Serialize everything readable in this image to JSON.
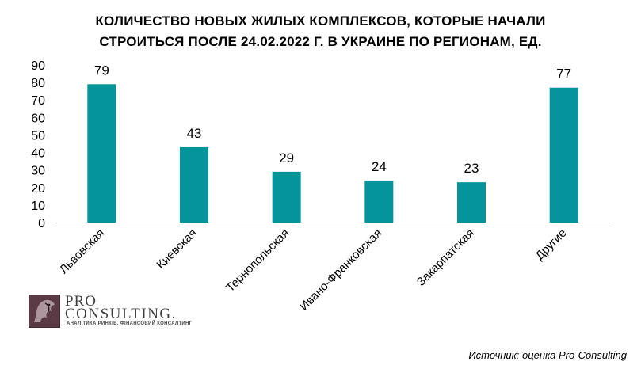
{
  "chart_data": {
    "type": "bar",
    "title": "КОЛИЧЕСТВО НОВЫХ ЖИЛЫХ КОМПЛЕКСОВ, КОТОРЫЕ НАЧАЛИ СТРОИТЬСЯ ПОСЛЕ 24.02.2022 Г. В УКРАИНЕ ПО РЕГИОНАМ, ЕД.",
    "title_lines": [
      "КОЛИЧЕСТВО НОВЫХ ЖИЛЫХ КОМПЛЕКСОВ, КОТОРЫЕ НАЧАЛИ",
      "СТРОИТЬСЯ ПОСЛЕ 24.02.2022 Г. В УКРАИНЕ ПО РЕГИОНАМ, ЕД."
    ],
    "categories": [
      "Львовская",
      "Киевская",
      "Тернопольская",
      "Ивано-Франковская",
      "Закарпатская",
      "Другие"
    ],
    "values": [
      79,
      43,
      29,
      24,
      23,
      77
    ],
    "ylim": [
      0,
      90
    ],
    "yticks": [
      0,
      10,
      20,
      30,
      40,
      50,
      60,
      70,
      80,
      90
    ],
    "grid": false,
    "legend": "none",
    "bar_color": "#05949A"
  },
  "logo": {
    "line1": "PRO",
    "line2": "CONSULTING.",
    "tagline": "АНАЛІТИКА РИНКІВ. ФІНАНСОВИЙ КОНСАЛТИНГ"
  },
  "source": "Источник: оценка Pro-Consulting"
}
